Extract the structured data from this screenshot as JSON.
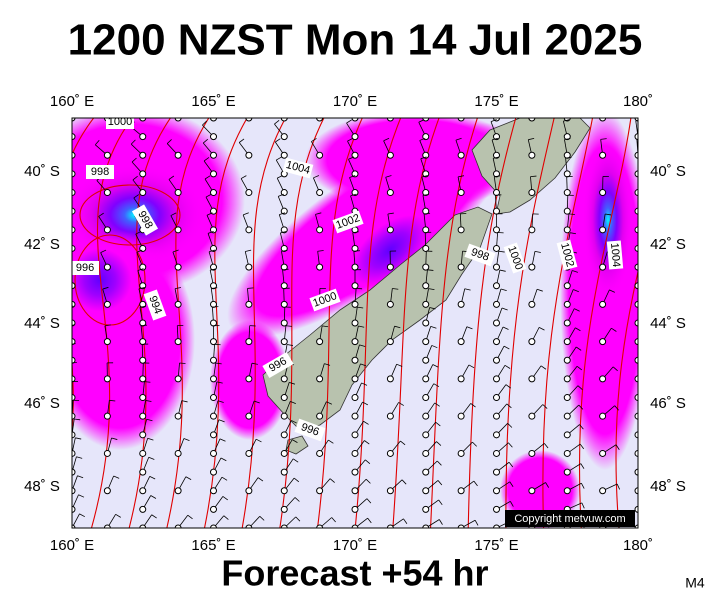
{
  "header": {
    "title": "1200 NZST Mon 14 Jul 2025"
  },
  "map": {
    "lon_labels": [
      "160˚ E",
      "165˚ E",
      "170˚ E",
      "175˚ E",
      "180˚"
    ],
    "lat_labels": [
      "40˚ S",
      "42˚ S",
      "44˚ S",
      "46˚ S",
      "48˚ S"
    ],
    "isobar_labels": [
      "1000",
      "998",
      "998",
      "996",
      "994",
      "1004",
      "1002",
      "1000",
      "998",
      "1000",
      "1002",
      "1004",
      "996",
      "996"
    ],
    "copyright": "Copyright metvuw.com"
  },
  "footer": {
    "forecast": "Forecast +54 hr",
    "model": "M4"
  }
}
